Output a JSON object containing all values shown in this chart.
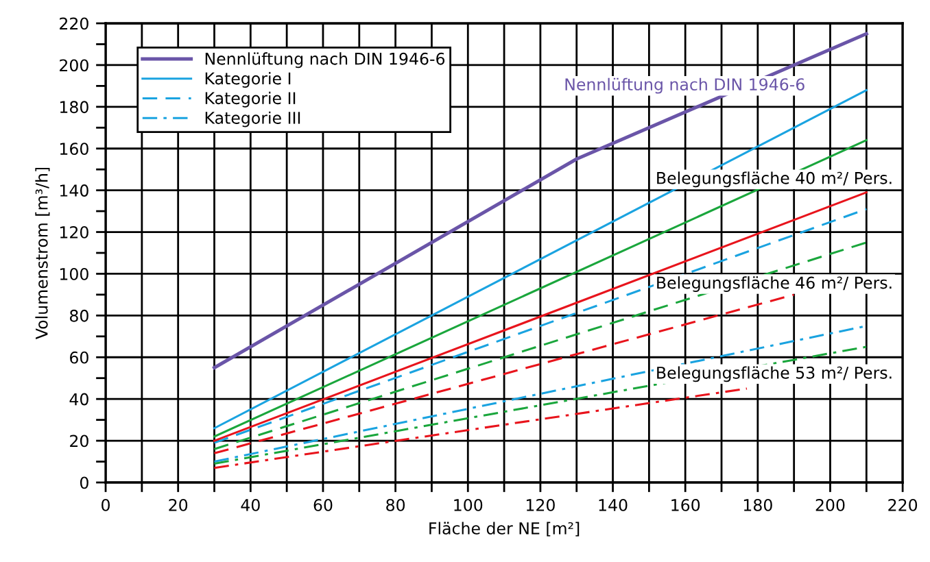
{
  "chart_data": {
    "type": "line",
    "xlabel": "Fläche der NE [m²]",
    "ylabel": "Volumenstrom [m³/h]",
    "xlim": [
      0,
      220
    ],
    "ylim": [
      0,
      220
    ],
    "xticks": [
      0,
      {
        "value": 10,
        "label": null
      },
      20,
      {
        "value": 30,
        "label": null
      },
      40,
      {
        "value": 50,
        "label": null
      },
      60,
      {
        "value": 70,
        "label": null
      },
      80,
      {
        "value": 90,
        "label": null
      },
      100,
      {
        "value": 110,
        "label": null
      },
      120,
      {
        "value": 130,
        "label": null
      },
      140,
      {
        "value": 150,
        "label": null
      },
      160,
      {
        "value": 170,
        "label": null
      },
      180,
      {
        "value": 190,
        "label": null
      },
      200,
      {
        "value": 210,
        "label": null
      },
      220
    ],
    "yticks": [
      0,
      {
        "value": 10,
        "label": null
      },
      20,
      {
        "value": 30,
        "label": null
      },
      40,
      {
        "value": 50,
        "label": null
      },
      60,
      {
        "value": 70,
        "label": null
      },
      80,
      {
        "value": 90,
        "label": null
      },
      100,
      {
        "value": 110,
        "label": null
      },
      120,
      {
        "value": 130,
        "label": null
      },
      140,
      {
        "value": 150,
        "label": null
      },
      160,
      {
        "value": 170,
        "label": null
      },
      180,
      {
        "value": 190,
        "label": null
      },
      200,
      {
        "value": 210,
        "label": null
      },
      220
    ],
    "grid": true,
    "legend": "top left",
    "marker": "none",
    "series": [
      {
        "name": "Nennlüftung nach DIN 1946-6",
        "color": "#6a55a8",
        "x": [
          30,
          130,
          210
        ],
        "values": [
          55,
          155,
          215
        ],
        "line_style": "solid"
      },
      {
        "name": "Kategorie I",
        "color": "#1aa3e0",
        "x": [
          30,
          210
        ],
        "values": [
          26,
          188
        ],
        "line_style": "solid"
      },
      {
        "name": "Kategorie II",
        "color": "#1aa3e0",
        "x": [
          30,
          210
        ],
        "values": [
          19,
          131
        ],
        "line_style": "dashed"
      },
      {
        "name": "Kategorie III",
        "color": "#1aa3e0",
        "x": [
          30,
          210
        ],
        "values": [
          10,
          75
        ],
        "line_style": "dashdot"
      },
      {
        "color": "#1aa63c",
        "x": [
          30,
          210
        ],
        "values": [
          22,
          164
        ],
        "line_style": "solid"
      },
      {
        "color": "#1aa63c",
        "x": [
          30,
          210
        ],
        "values": [
          16,
          115
        ],
        "line_style": "dashed"
      },
      {
        "color": "#1aa63c",
        "x": [
          30,
          210
        ],
        "values": [
          9,
          65
        ],
        "line_style": "dashdot"
      },
      {
        "color": "#e8141c",
        "x": [
          30,
          210
        ],
        "values": [
          20,
          139
        ],
        "line_style": "solid"
      },
      {
        "color": "#e8141c",
        "x": [
          30,
          190
        ],
        "values": [
          14,
          90
        ],
        "line_style": "dashed"
      },
      {
        "color": "#e8141c",
        "x": [
          30,
          177
        ],
        "values": [
          7,
          45
        ],
        "line_style": "dashdot"
      }
    ],
    "annotations": [
      "Nennlüftung nach DIN 1946-6",
      "Belegungsfläche 40 m²/ Pers.",
      "Belegungsfläche 46 m²/ Pers.",
      "Belegungsfläche 53 m²/ Pers."
    ]
  }
}
